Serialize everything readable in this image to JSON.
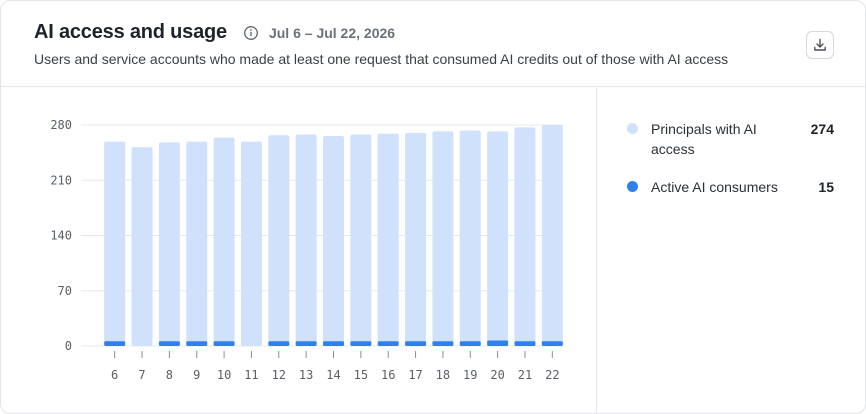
{
  "header": {
    "title": "AI access and usage",
    "date_range": "Jul 6 – Jul 22, 2026",
    "subtitle": "Users and service accounts who made at least one request that consumed AI credits out of those with AI access",
    "info_icon": "info-icon",
    "download_icon": "download-icon"
  },
  "legend": {
    "items": [
      {
        "label": "Principals with AI access",
        "value": "274",
        "color": "#d0e2fb"
      },
      {
        "label": "Active AI consumers",
        "value": "15",
        "color": "#2f80ed"
      }
    ]
  },
  "chart_data": {
    "type": "bar",
    "stacked": false,
    "categories": [
      "6",
      "7",
      "8",
      "9",
      "10",
      "11",
      "12",
      "13",
      "14",
      "15",
      "16",
      "17",
      "18",
      "19",
      "20",
      "21",
      "22"
    ],
    "series": [
      {
        "name": "Principals with AI access",
        "color": "#d0e2fb",
        "values": [
          259,
          252,
          258,
          259,
          264,
          259,
          267,
          268,
          266,
          268,
          269,
          270,
          272,
          273,
          272,
          277,
          280
        ]
      },
      {
        "name": "Active AI consumers",
        "color": "#2f80ed",
        "values": [
          6,
          0,
          6,
          6,
          6,
          0,
          6,
          6,
          6,
          6,
          6,
          6,
          6,
          6,
          7,
          6,
          6
        ]
      }
    ],
    "yticks": [
      "0",
      "70",
      "140",
      "210",
      "280"
    ],
    "ylim": [
      0,
      280
    ],
    "grid": true
  }
}
